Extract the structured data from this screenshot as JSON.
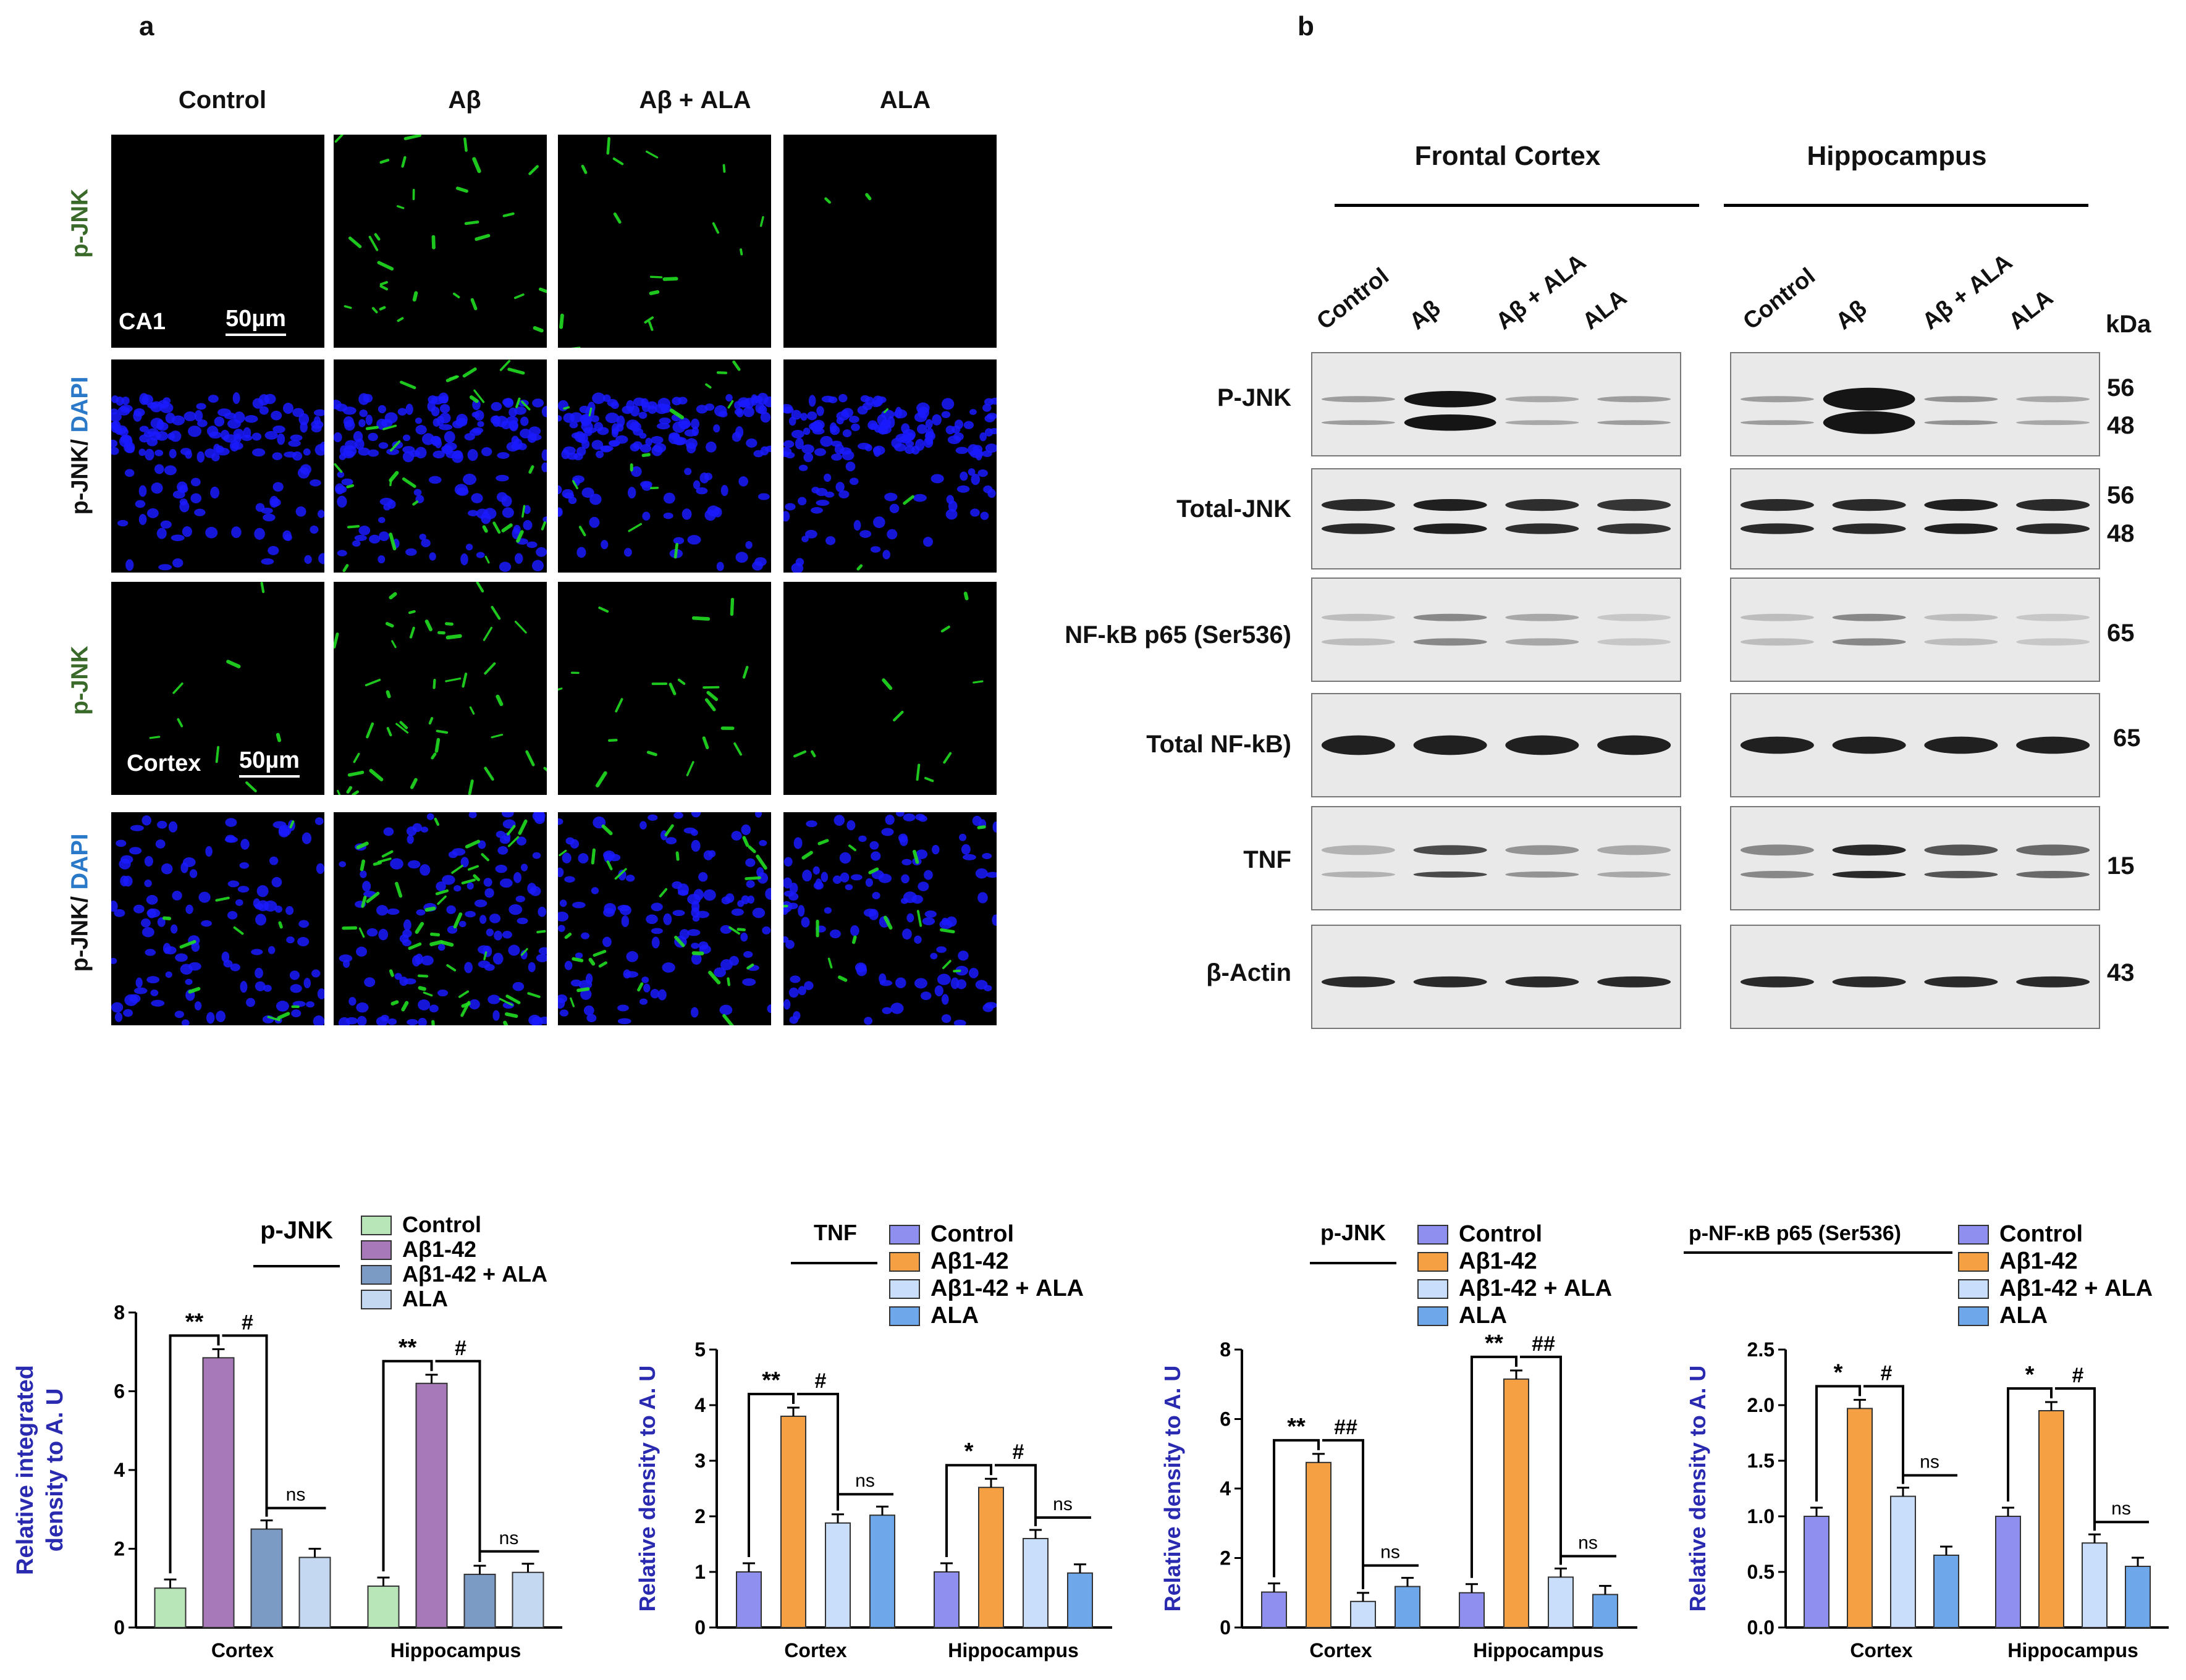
{
  "panel_a": {
    "letter": "a",
    "columns": [
      "Control",
      "Aβ",
      "Aβ + ALA",
      "ALA"
    ],
    "row_labels": {
      "r1": "p-JNK",
      "r2_part1": "p-JNK/ ",
      "r2_part2": "DAPI",
      "r3": "p-JNK",
      "r4_part1": "p-JNK/ ",
      "r4_part2": "DAPI"
    },
    "region_ca1": "CA1",
    "region_cortex": "Cortex",
    "scale_bar": "50µm",
    "colors": {
      "green_label": "#3a6a2a",
      "dapi_label": "#2a78c8",
      "nuclei": "#1a1aff",
      "signal": "#22dd22"
    }
  },
  "panel_b": {
    "letter": "b",
    "regions": [
      "Frontal Cortex",
      "Hippocampus"
    ],
    "lanes": [
      "Control",
      "Aβ",
      "Aβ + ALA",
      "ALA"
    ],
    "kda_label": "kDa",
    "rows": [
      {
        "protein": "P-JNK",
        "kda": [
          "56",
          "48"
        ]
      },
      {
        "protein": "Total-JNK",
        "kda": [
          "56",
          "48"
        ]
      },
      {
        "protein": "NF-kB p65 (Ser536)",
        "kda": [
          "65"
        ]
      },
      {
        "protein": "Total NF-kB)",
        "kda": [
          "65"
        ]
      },
      {
        "protein": "TNF",
        "kda": [
          "15"
        ]
      },
      {
        "protein": "β-Actin",
        "kda": [
          "43"
        ]
      }
    ]
  },
  "chart_data": [
    {
      "type": "bar",
      "title": "p-JNK",
      "ylabel": "Relative integrated density to A. U",
      "ylim": [
        0,
        8
      ],
      "yticks": [
        0,
        2,
        4,
        6,
        8
      ],
      "categories": [
        "Cortex",
        "Hippocampus"
      ],
      "series": [
        {
          "name": "Control",
          "values": [
            1.0,
            1.05
          ],
          "color": "#b8e6b8"
        },
        {
          "name": "Aβ1-42",
          "values": [
            6.85,
            6.2
          ],
          "color": "#a879b8"
        },
        {
          "name": "Aβ1-42 + ALA",
          "values": [
            2.5,
            1.35
          ],
          "color": "#7b9ac4"
        },
        {
          "name": "ALA",
          "values": [
            1.78,
            1.4
          ],
          "color": "#c4d8f2"
        }
      ],
      "annotations": [
        {
          "group": 0,
          "text": "**"
        },
        {
          "group": 0,
          "text": "#"
        },
        {
          "group": 0,
          "text": "ns"
        },
        {
          "group": 1,
          "text": "**"
        },
        {
          "group": 1,
          "text": "#"
        },
        {
          "group": 1,
          "text": "ns"
        }
      ]
    },
    {
      "type": "bar",
      "title": "TNF",
      "ylabel": "Relative density to A. U",
      "ylim": [
        0,
        5
      ],
      "yticks": [
        0,
        1,
        2,
        3,
        4,
        5
      ],
      "categories": [
        "Cortex",
        "Hippocampus"
      ],
      "series": [
        {
          "name": "Control",
          "values": [
            1.0,
            1.0
          ],
          "color": "#8f8ff0"
        },
        {
          "name": "Aβ1-42",
          "values": [
            3.8,
            2.52
          ],
          "color": "#f5a043"
        },
        {
          "name": "Aβ1-42 + ALA",
          "values": [
            1.88,
            1.6
          ],
          "color": "#c9defa"
        },
        {
          "name": "ALA",
          "values": [
            2.02,
            0.98
          ],
          "color": "#6fa8ea"
        }
      ],
      "annotations": [
        {
          "group": 0,
          "text": "**"
        },
        {
          "group": 0,
          "text": "#"
        },
        {
          "group": 0,
          "text": "ns"
        },
        {
          "group": 1,
          "text": "*"
        },
        {
          "group": 1,
          "text": "#"
        },
        {
          "group": 1,
          "text": "ns"
        }
      ]
    },
    {
      "type": "bar",
      "title": "p-JNK",
      "ylabel": "Relative density to A. U",
      "ylim": [
        0,
        8
      ],
      "yticks": [
        0,
        2,
        4,
        6,
        8
      ],
      "categories": [
        "Cortex",
        "Hippocampus"
      ],
      "series": [
        {
          "name": "Control",
          "values": [
            1.02,
            1.0
          ],
          "color": "#8f8ff0"
        },
        {
          "name": "Aβ1-42",
          "values": [
            4.75,
            7.15
          ],
          "color": "#f5a043"
        },
        {
          "name": "Aβ1-42 + ALA",
          "values": [
            0.75,
            1.45
          ],
          "color": "#c9defa"
        },
        {
          "name": "ALA",
          "values": [
            1.18,
            0.95
          ],
          "color": "#6fa8ea"
        }
      ],
      "annotations": [
        {
          "group": 0,
          "text": "**"
        },
        {
          "group": 0,
          "text": "##"
        },
        {
          "group": 0,
          "text": "ns"
        },
        {
          "group": 1,
          "text": "**"
        },
        {
          "group": 1,
          "text": "##"
        },
        {
          "group": 1,
          "text": "ns"
        }
      ]
    },
    {
      "type": "bar",
      "title": "p-NF-κB p65 (Ser536)",
      "ylabel": "Relative density to A. U",
      "ylim": [
        0,
        2.5
      ],
      "yticks": [
        "0.0",
        "0.5",
        "1.0",
        "1.5",
        "2.0",
        "2.5"
      ],
      "categories": [
        "Cortex",
        "Hippocampus"
      ],
      "series": [
        {
          "name": "Control",
          "values": [
            1.0,
            1.0
          ],
          "color": "#8f8ff0"
        },
        {
          "name": "Aβ1-42",
          "values": [
            1.97,
            1.95
          ],
          "color": "#f5a043"
        },
        {
          "name": "Aβ1-42 + ALA",
          "values": [
            1.18,
            0.76
          ],
          "color": "#c9defa"
        },
        {
          "name": "ALA",
          "values": [
            0.65,
            0.55
          ],
          "color": "#6fa8ea"
        }
      ],
      "annotations": [
        {
          "group": 0,
          "text": "*"
        },
        {
          "group": 0,
          "text": "#"
        },
        {
          "group": 0,
          "text": "ns"
        },
        {
          "group": 1,
          "text": "*"
        },
        {
          "group": 1,
          "text": "#"
        },
        {
          "group": 1,
          "text": "ns"
        }
      ]
    }
  ]
}
